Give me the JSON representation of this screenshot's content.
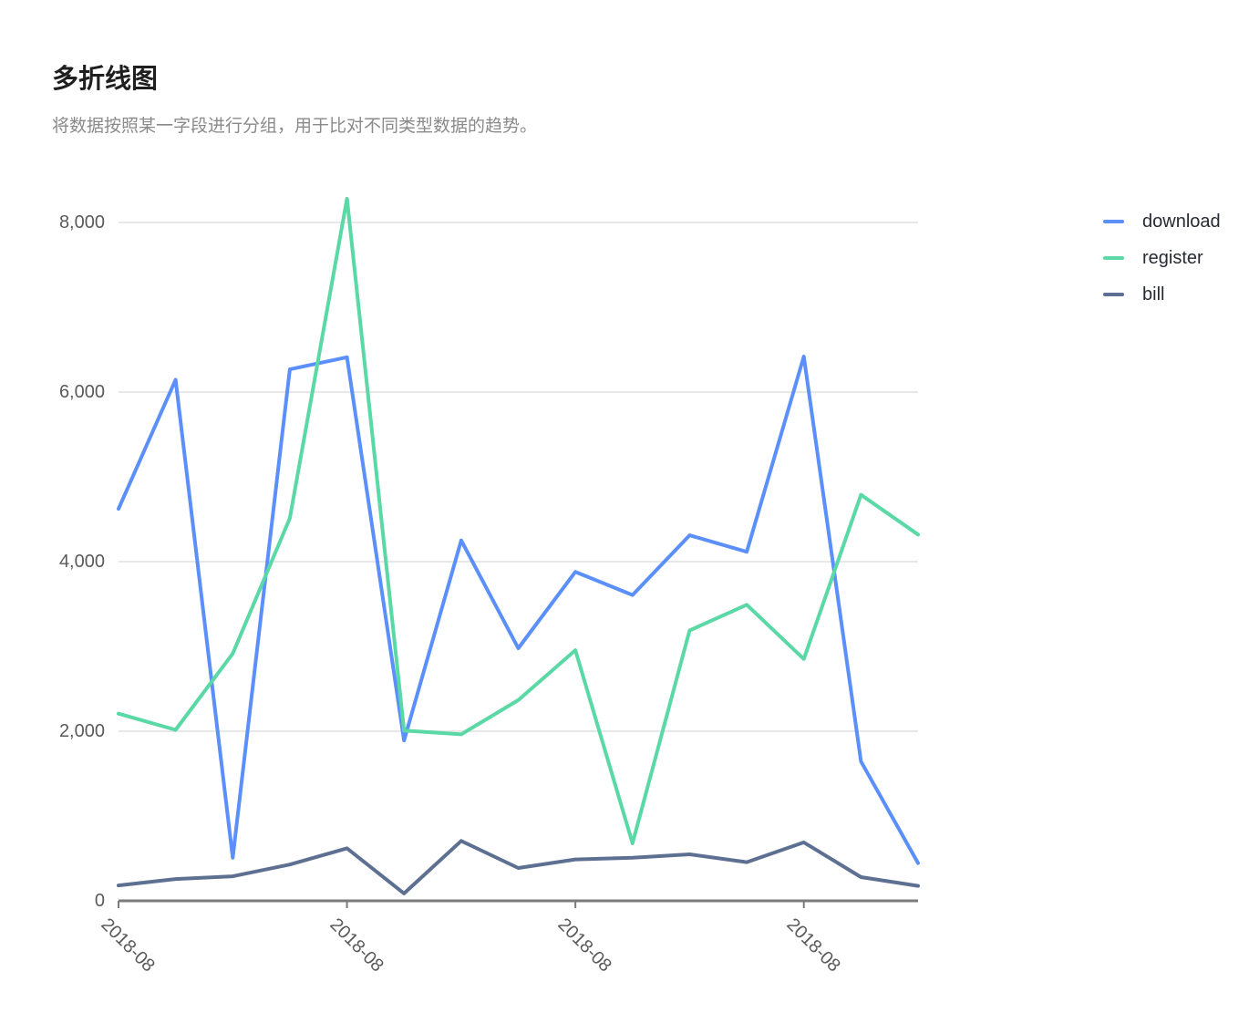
{
  "page": {
    "title": "多折线图",
    "subtitle": "将数据按照某一字段进行分组，用于比对不同类型数据的趋势。"
  },
  "chart_data": {
    "type": "line",
    "title": "多折线图",
    "subtitle": "将数据按照某一字段进行分组，用于比对不同类型数据的趋势。",
    "points_per_series": 15,
    "series": [
      {
        "name": "download",
        "color": "#5B8FF9",
        "values": [
          4623,
          6145,
          508,
          6268,
          6411,
          1890,
          4251,
          2978,
          3880,
          3606,
          4311,
          4116,
          6419,
          1643,
          445
        ]
      },
      {
        "name": "register",
        "color": "#5AD8A6",
        "values": [
          2208,
          2016,
          2916,
          4512,
          8281,
          2008,
          1963,
          2367,
          2956,
          678,
          3188,
          3491,
          2852,
          4788,
          4319
        ]
      },
      {
        "name": "bill",
        "color": "#5D7092",
        "values": [
          182,
          257,
          289,
          428,
          619,
          87,
          706,
          387,
          488,
          507,
          548,
          456,
          689,
          280,
          176
        ]
      }
    ],
    "x_axis": {
      "tick_indices": [
        0,
        4,
        8,
        12
      ],
      "tick_labels": [
        "2018-08",
        "2018-08",
        "2018-08",
        "2018-08"
      ]
    },
    "y_axis": {
      "min": 0,
      "max": 8000,
      "ticks": [
        0,
        2000,
        4000,
        6000,
        8000
      ],
      "tick_labels": [
        "0",
        "2,000",
        "4,000",
        "6,000",
        "8,000"
      ]
    },
    "grid": "horizontal",
    "legend": {
      "position": "right",
      "items": [
        "download",
        "register",
        "bill"
      ]
    },
    "style": {
      "grid_color": "#E8E8E8",
      "axis_color": "#7B7B7B",
      "axis_label_color": "#5A5A5A",
      "legend_text_color": "#262B33",
      "line_width": 4
    }
  }
}
